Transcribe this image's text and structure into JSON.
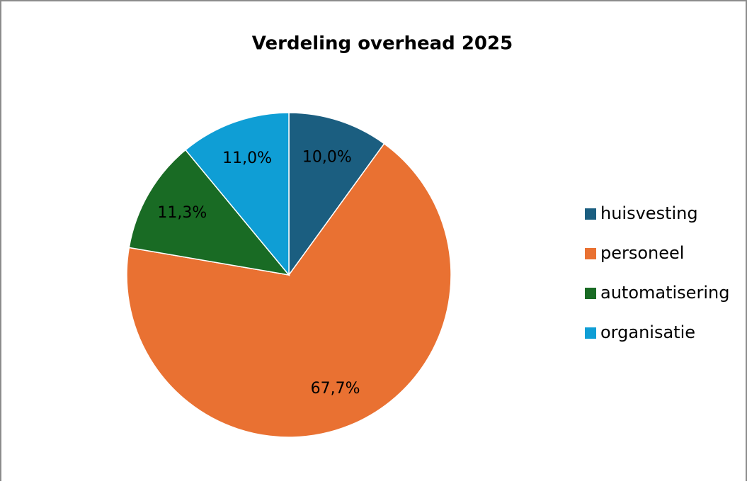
{
  "chart_data": {
    "type": "pie",
    "title": "Verdeling overhead 2025",
    "categories": [
      "huisvesting",
      "personeel",
      "automatisering",
      "organisatie"
    ],
    "values": [
      10.0,
      67.7,
      11.3,
      11.0
    ],
    "value_labels": [
      "10,0%",
      "67,7%",
      "11,3%",
      "11,0%"
    ],
    "colors": [
      "#1b5e80",
      "#e97132",
      "#196b24",
      "#0f9ed5"
    ],
    "legend": "right"
  }
}
